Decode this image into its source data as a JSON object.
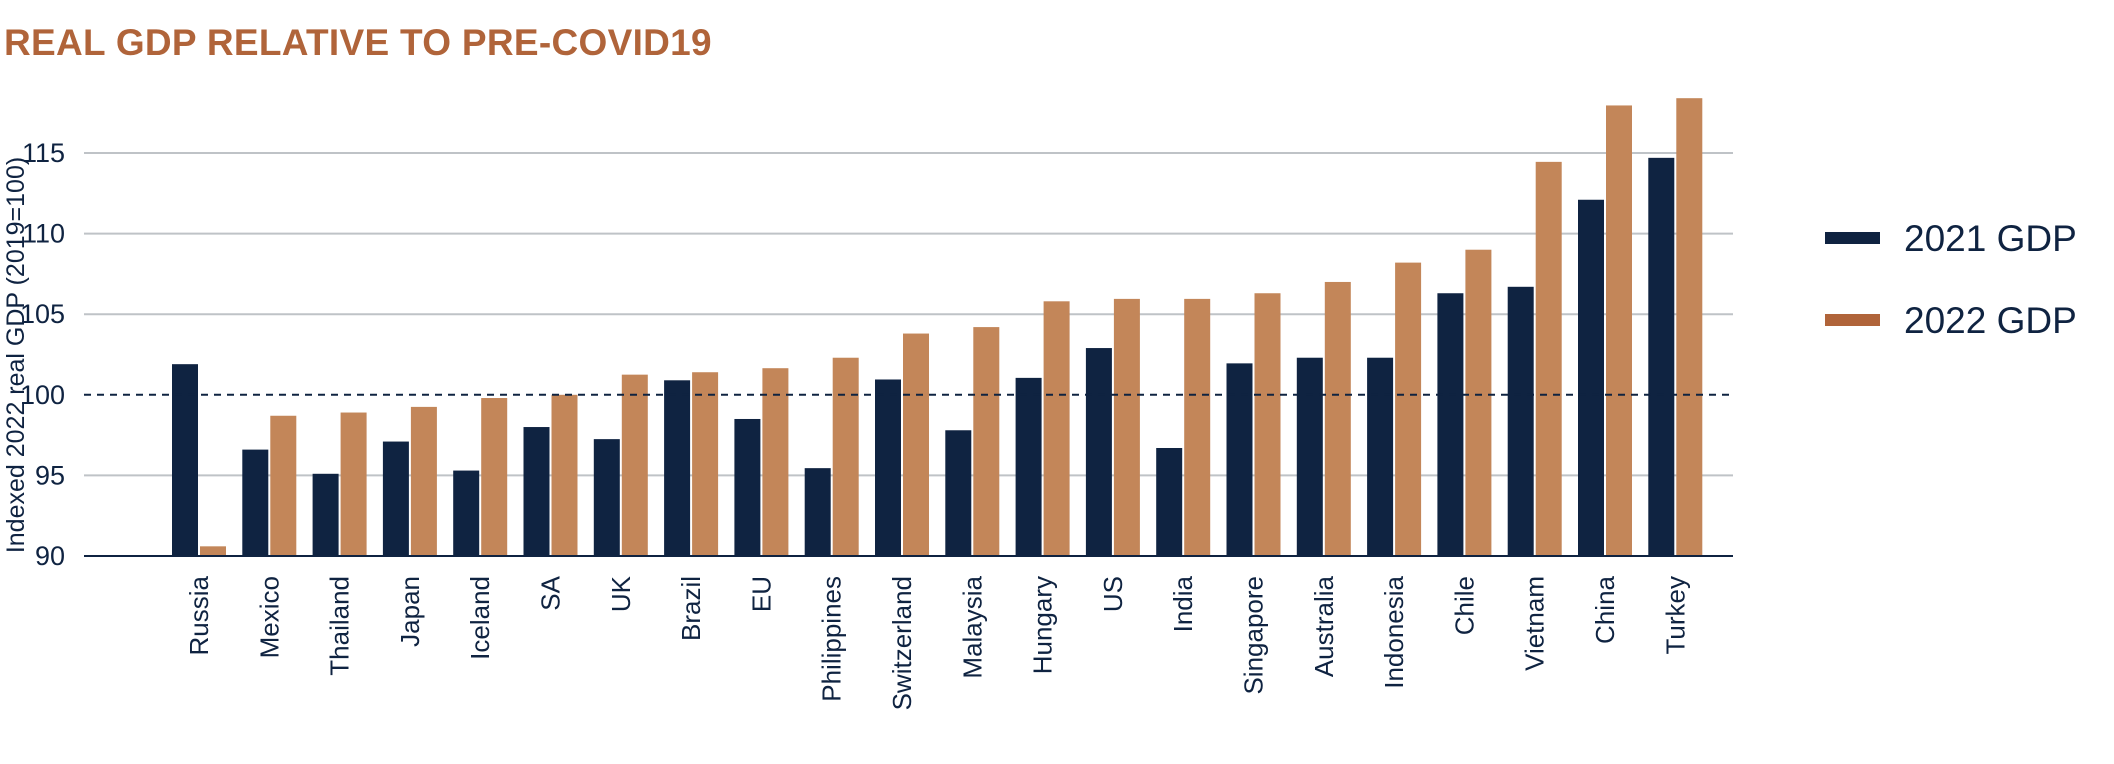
{
  "chart_data": {
    "type": "bar",
    "title": "REAL GDP RELATIVE TO PRE-COVID19",
    "xlabel": "",
    "ylabel": "Indexed 2022 real GDP (2019=100)",
    "ylim": [
      90,
      118.5
    ],
    "yticks": [
      90,
      95,
      100,
      105,
      110,
      115
    ],
    "reference_line": {
      "y": 100,
      "style": "dashed"
    },
    "grid": true,
    "legend_position": "right",
    "categories": [
      "Russia",
      "Mexico",
      "Thailand",
      "Japan",
      "Iceland",
      "SA",
      "UK",
      "Brazil",
      "EU",
      "Philippines",
      "Switzerland",
      "Malaysia",
      "Hungary",
      "US",
      "India",
      "Singapore",
      "Australia",
      "Indonesia",
      "Chile",
      "Vietnam",
      "China",
      "Turkey"
    ],
    "series": [
      {
        "name": "2021 GDP",
        "color": "#0F2341",
        "values": [
          101.9,
          96.6,
          95.1,
          97.1,
          95.3,
          98.0,
          97.25,
          100.9,
          98.5,
          95.45,
          100.95,
          97.8,
          101.05,
          102.9,
          96.7,
          101.95,
          102.3,
          102.3,
          106.3,
          106.7,
          112.1,
          114.7
        ]
      },
      {
        "name": "2022 GDP",
        "color": "#C38659",
        "legend_color": "#B0643A",
        "values": [
          90.6,
          98.7,
          98.9,
          99.25,
          99.8,
          100.0,
          101.25,
          101.4,
          101.65,
          102.3,
          103.8,
          104.2,
          105.8,
          105.95,
          105.95,
          106.3,
          107.0,
          108.2,
          109.0,
          114.45,
          117.95,
          118.4
        ]
      }
    ]
  }
}
